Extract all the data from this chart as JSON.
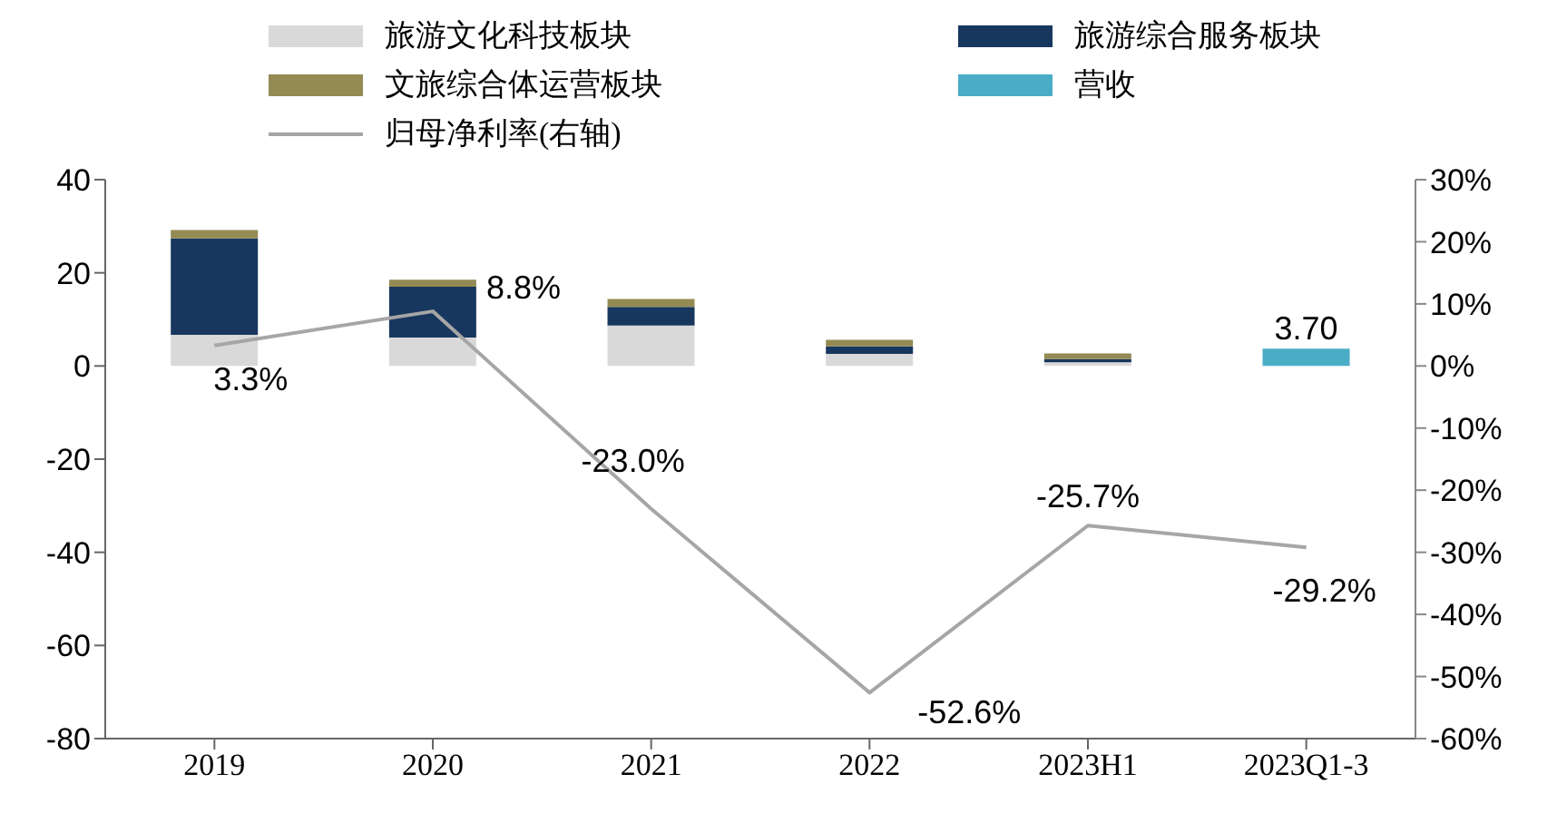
{
  "chart_data": {
    "type": "bar",
    "stacked": true,
    "categories": [
      "2019",
      "2020",
      "2021",
      "2022",
      "2023H1",
      "2023Q1-3"
    ],
    "series": [
      {
        "name": "旅游文化科技板块",
        "color": "#d9d9d9",
        "values": [
          6.7,
          6.1,
          8.7,
          2.6,
          0.8,
          null
        ]
      },
      {
        "name": "旅游综合服务板块",
        "color": "#17375e",
        "values": [
          20.7,
          10.9,
          4.0,
          1.6,
          0.7,
          null
        ]
      },
      {
        "name": "文旅综合体运营板块",
        "color": "#948a54",
        "values": [
          1.8,
          1.5,
          1.7,
          1.4,
          1.2,
          null
        ]
      },
      {
        "name": "营收",
        "color": "#4bacc6",
        "values": [
          null,
          null,
          null,
          null,
          null,
          3.7
        ],
        "value_labels": [
          null,
          null,
          null,
          null,
          null,
          "3.70"
        ]
      },
      {
        "name": "归母净利率(右轴)",
        "type": "line",
        "axis": "y2",
        "color": "#a6a6a6",
        "values": [
          3.3,
          8.8,
          -23.0,
          -52.6,
          -25.7,
          -29.2
        ],
        "value_labels": [
          "3.3%",
          "8.8%",
          "-23.0%",
          "-52.6%",
          "-25.7%",
          "-29.2%"
        ]
      }
    ],
    "ylim": [
      -80,
      40
    ],
    "yticks": [
      -80,
      -60,
      -40,
      -20,
      0,
      20,
      40
    ],
    "y2lim": [
      -60,
      30
    ],
    "y2ticks": [
      {
        "value": -60,
        "label": "-60%"
      },
      {
        "value": -50,
        "label": "-50%"
      },
      {
        "value": -40,
        "label": "-40%"
      },
      {
        "value": -30,
        "label": "-30%"
      },
      {
        "value": -20,
        "label": "-20%"
      },
      {
        "value": -10,
        "label": "-10%"
      },
      {
        "value": 0,
        "label": "0%"
      },
      {
        "value": 10,
        "label": "10%"
      },
      {
        "value": 20,
        "label": "20%"
      },
      {
        "value": 30,
        "label": "30%"
      }
    ],
    "legend": "top",
    "grid": false,
    "marker": "none"
  }
}
